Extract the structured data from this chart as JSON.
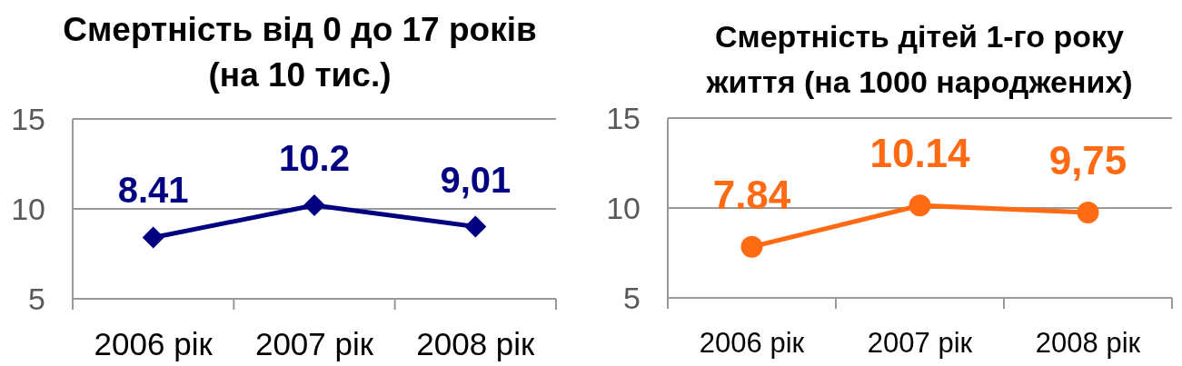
{
  "chart_data": [
    {
      "type": "line",
      "title": "Смертність від 0 до 17 років (на 10 тис.)",
      "categories": [
        "2006 рік",
        "2007 рік",
        "2008 рік"
      ],
      "series": [
        {
          "color": "#000080",
          "values": [
            8.41,
            10.2,
            9.01
          ],
          "value_labels": [
            "8.41",
            "10.2",
            "9,01"
          ]
        }
      ],
      "ylim": [
        5,
        15
      ],
      "yticks": [
        5,
        10,
        15
      ],
      "grid": "y",
      "marker": "diamond"
    },
    {
      "type": "line",
      "title": "Смертність дітей 1-го року життя (на 1000 народжених)",
      "categories": [
        "2006 рік",
        "2007 рік",
        "2008 рік"
      ],
      "series": [
        {
          "color": "#ff6a13",
          "values": [
            7.84,
            10.14,
            9.75
          ],
          "value_labels": [
            "7.84",
            "10.14",
            "9,75"
          ]
        }
      ],
      "ylim": [
        5,
        15
      ],
      "yticks": [
        5,
        10,
        15
      ],
      "grid": "y",
      "marker": "circle"
    }
  ]
}
